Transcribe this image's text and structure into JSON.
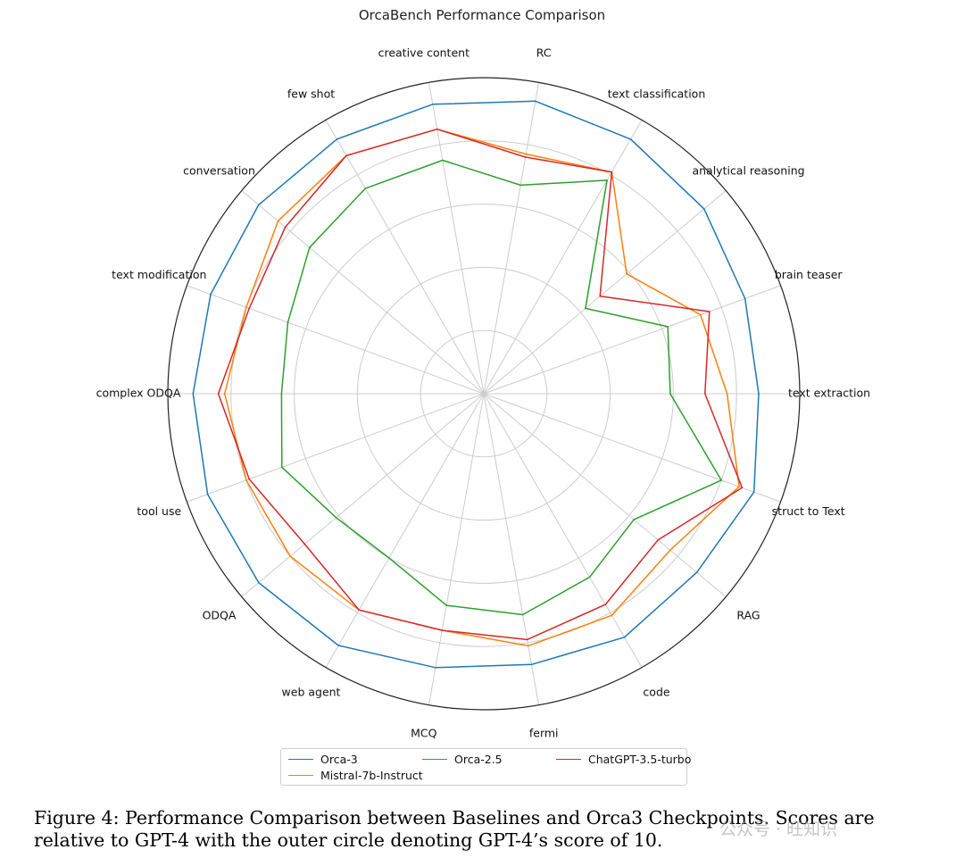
{
  "chart_data": {
    "type": "radar",
    "title": "OrcaBench Performance Comparison",
    "categories": [
      "text extraction",
      "brain teaser",
      "analytical reasoning",
      "text classification",
      "RC",
      "creative content",
      "few shot",
      "conversation",
      "text modification",
      "complex ODQA",
      "tool use",
      "ODQA",
      "web agent",
      "MCQ",
      "fermi",
      "code",
      "RAG",
      "struct to Text"
    ],
    "range": [
      0,
      10
    ],
    "rings": [
      2,
      4,
      6,
      8,
      10
    ],
    "grid": true,
    "legend_position": "below",
    "series": [
      {
        "name": "Orca-3",
        "color": "#1f77b4",
        "values": [
          8.7,
          8.8,
          9.1,
          9.3,
          9.4,
          9.3,
          9.3,
          9.3,
          9.2,
          9.2,
          9.3,
          9.3,
          9.2,
          8.8,
          8.7,
          8.9,
          8.8,
          9.1
        ]
      },
      {
        "name": "Mistral-7b-Instruct",
        "color": "#ff7f0e",
        "values": [
          7.7,
          7.3,
          5.9,
          8.1,
          7.7,
          8.5,
          8.7,
          8.5,
          8.0,
          8.2,
          8.0,
          8.0,
          7.9,
          7.6,
          8.1,
          8.1,
          7.7,
          8.6
        ]
      },
      {
        "name": "Orca-2.5",
        "color": "#2ca02c",
        "values": [
          5.9,
          6.2,
          4.2,
          7.8,
          6.7,
          7.5,
          7.5,
          7.2,
          6.6,
          6.4,
          6.8,
          6.1,
          6.0,
          6.8,
          7.1,
          6.7,
          6.2,
          8.0
        ]
      },
      {
        "name": "ChatGPT-3.5-turbo",
        "color": "#d62728",
        "values": [
          7.0,
          7.6,
          4.8,
          8.1,
          7.6,
          8.5,
          8.7,
          8.2,
          7.9,
          8.4,
          7.9,
          7.4,
          7.9,
          7.6,
          7.9,
          7.7,
          7.2,
          8.7
        ]
      }
    ]
  },
  "caption": "Figure 4: Performance Comparison between Baselines and Orca3 Checkpoints. Scores are relative to GPT-4 with the outer circle denoting GPT-4’s score of 10.",
  "watermark": "公众号 · 旺知识"
}
